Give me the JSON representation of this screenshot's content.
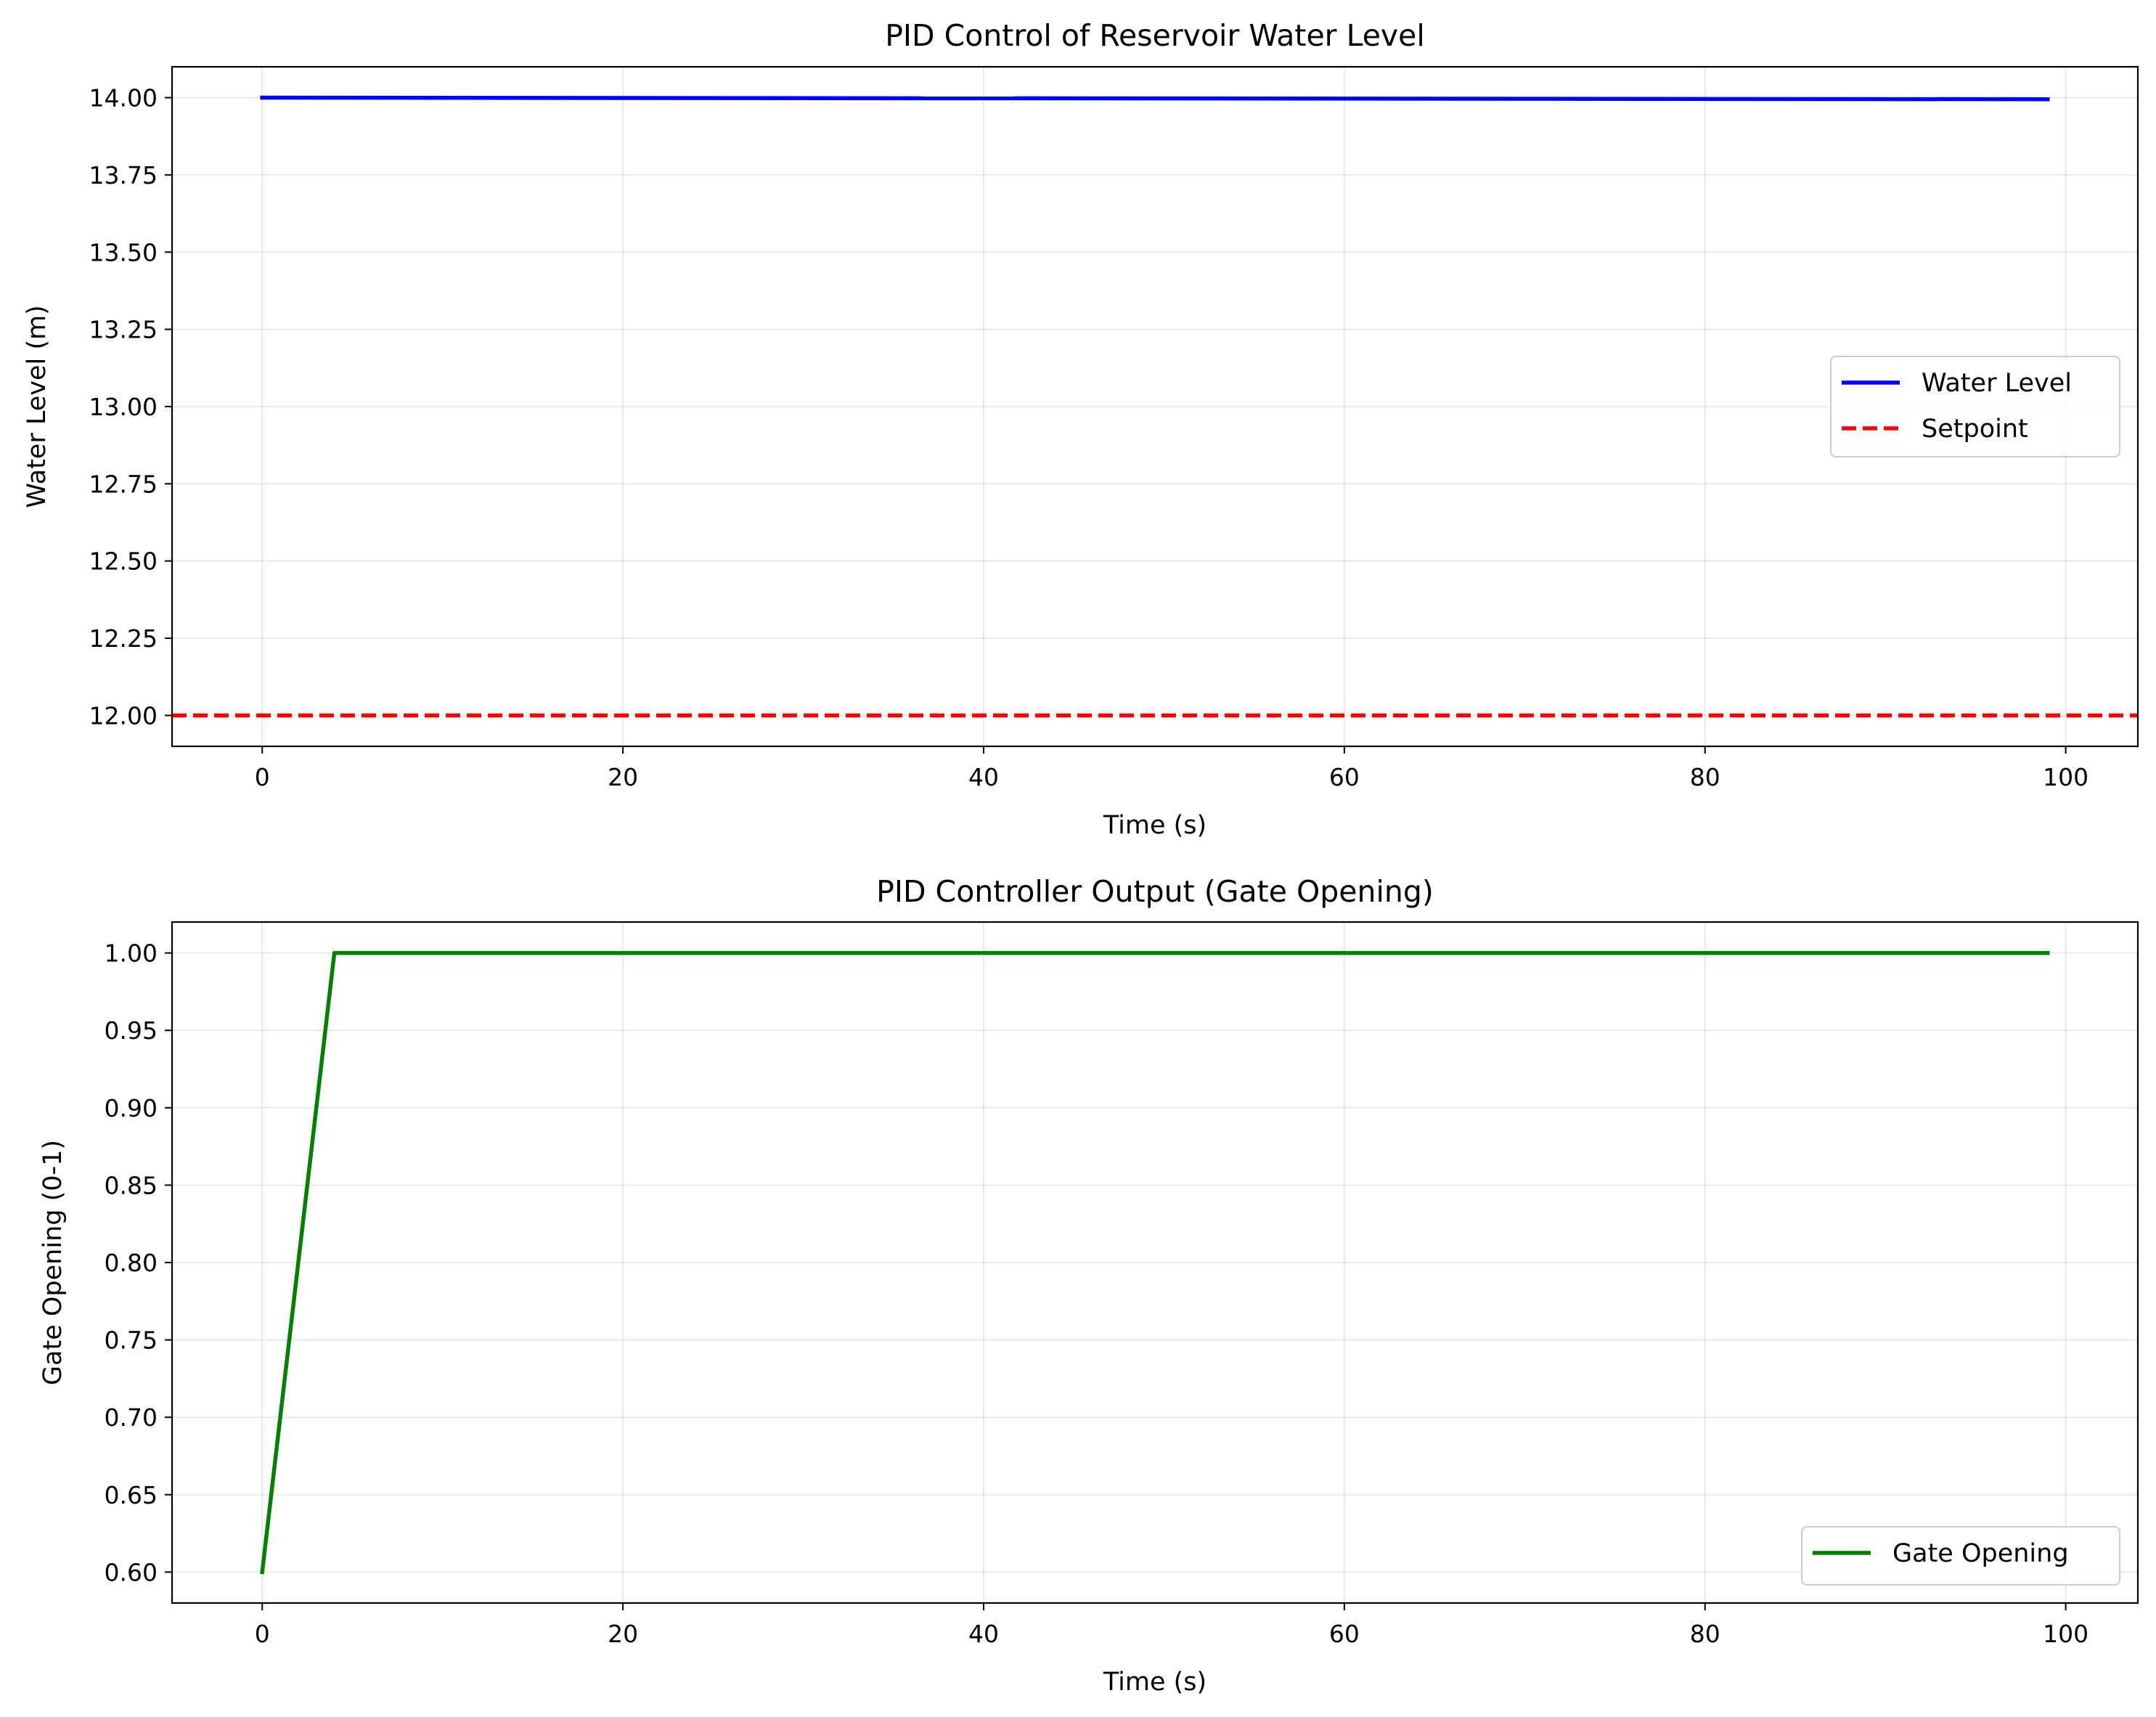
{
  "chart_data": [
    {
      "type": "line",
      "title": "PID Control of Reservoir Water Level",
      "xlabel": "Time (s)",
      "ylabel": "Water Level (m)",
      "xlim": [
        -5,
        104
      ],
      "ylim": [
        11.9,
        14.1
      ],
      "xticks": [
        0,
        20,
        40,
        60,
        80,
        100
      ],
      "xtick_labels": [
        "0",
        "20",
        "40",
        "60",
        "80",
        "100"
      ],
      "yticks": [
        12.0,
        12.25,
        12.5,
        12.75,
        13.0,
        13.25,
        13.5,
        13.75,
        14.0
      ],
      "ytick_labels": [
        "12.00",
        "12.25",
        "12.50",
        "12.75",
        "13.00",
        "13.25",
        "13.50",
        "13.75",
        "14.00"
      ],
      "grid": true,
      "legend_position": "center-right",
      "series": [
        {
          "name": "Water Level",
          "color": "#0000ff",
          "style": "solid",
          "x": [
            0,
            99
          ],
          "y": [
            14.0,
            13.995
          ]
        },
        {
          "name": "Setpoint",
          "color": "#ff0000",
          "style": "dashed",
          "x": [
            -5,
            104
          ],
          "y": [
            12.0,
            12.0
          ]
        }
      ]
    },
    {
      "type": "line",
      "title": "PID Controller Output (Gate Opening)",
      "xlabel": "Time (s)",
      "ylabel": "Gate Opening (0-1)",
      "xlim": [
        -5,
        104
      ],
      "ylim": [
        0.58,
        1.02
      ],
      "xticks": [
        0,
        20,
        40,
        60,
        80,
        100
      ],
      "xtick_labels": [
        "0",
        "20",
        "40",
        "60",
        "80",
        "100"
      ],
      "yticks": [
        0.6,
        0.65,
        0.7,
        0.75,
        0.8,
        0.85,
        0.9,
        0.95,
        1.0
      ],
      "ytick_labels": [
        "0.60",
        "0.65",
        "0.70",
        "0.75",
        "0.80",
        "0.85",
        "0.90",
        "0.95",
        "1.00"
      ],
      "grid": true,
      "legend_position": "lower-right",
      "series": [
        {
          "name": "Gate Opening",
          "color": "#008000",
          "style": "solid",
          "x": [
            0,
            4,
            99
          ],
          "y": [
            0.6,
            1.0,
            1.0
          ]
        }
      ]
    }
  ]
}
